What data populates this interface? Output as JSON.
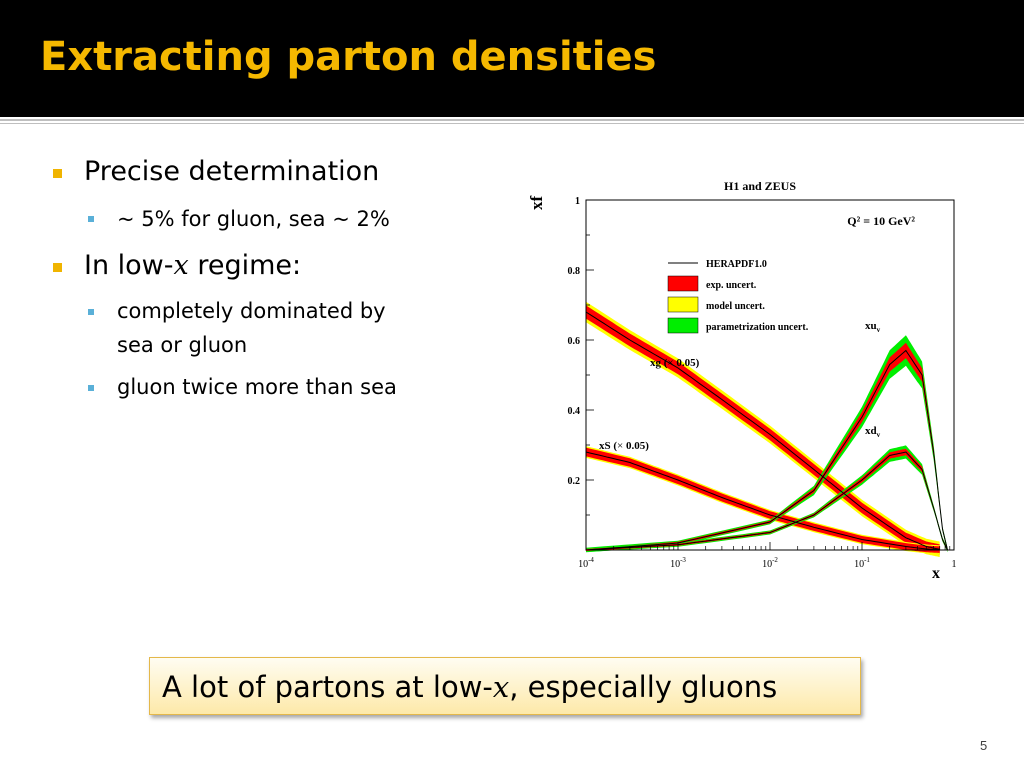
{
  "slide": {
    "title": "Extracting parton densities",
    "bullets": [
      {
        "pre": "Precise determination",
        "var": "",
        "post": ""
      },
      {
        "pre": "~ 5% for gluon, sea ~ 2%",
        "var": "",
        "post": ""
      },
      {
        "pre": "In low-",
        "var": "x",
        "post": " regime:"
      },
      {
        "pre": "completely dominated by",
        "var": "",
        "post": ""
      },
      {
        "pre": "sea or gluon",
        "var": "",
        "post": ""
      },
      {
        "pre": "gluon twice more than sea",
        "var": "",
        "post": ""
      }
    ],
    "callout": {
      "pre": "A lot of partons at low-",
      "var": "x",
      "post": ", especially gluons"
    },
    "page_number": "5"
  },
  "colors": {
    "title": "#f5b800",
    "bullet_l1": "#f0b400",
    "bullet_l2": "#5ab0d8",
    "exp_uncert": "#ff0000",
    "model_uncert": "#ffff00",
    "param_uncert": "#00ee00",
    "central": "#000000"
  },
  "chart_data": {
    "type": "line",
    "title": "H1 and ZEUS",
    "scale_label": "Q² = 10 GeV²",
    "xlabel": "x",
    "ylabel": "xf",
    "x_scale": "log",
    "xlim": [
      0.0001,
      1
    ],
    "ylim": [
      0,
      1
    ],
    "x_ticks": [
      {
        "base": "10",
        "exp": "-4"
      },
      {
        "base": "10",
        "exp": "-3"
      },
      {
        "base": "10",
        "exp": "-2"
      },
      {
        "base": "10",
        "exp": "-1"
      },
      {
        "base": "1",
        "exp": ""
      }
    ],
    "y_ticks": [
      "0.2",
      "0.4",
      "0.6",
      "0.8",
      "1"
    ],
    "legend": {
      "placement": "center-right",
      "entries": [
        "HERAPDF1.0",
        "exp. uncert.",
        "model uncert.",
        "parametrization uncert."
      ]
    },
    "series": [
      {
        "label_main": "xg (",
        "label_sym": "×",
        "label_rest": " 0.05)",
        "x": [
          0.0001,
          0.0003,
          0.001,
          0.003,
          0.01,
          0.03,
          0.1,
          0.3,
          0.5,
          0.7
        ],
        "y": [
          0.68,
          0.6,
          0.52,
          0.43,
          0.33,
          0.23,
          0.12,
          0.035,
          0.01,
          0.002
        ]
      },
      {
        "label_main": "xS (",
        "label_sym": "×",
        "label_rest": " 0.05)",
        "x": [
          0.0001,
          0.0003,
          0.001,
          0.003,
          0.01,
          0.03,
          0.1,
          0.3,
          0.5,
          0.7
        ],
        "y": [
          0.28,
          0.25,
          0.2,
          0.15,
          0.1,
          0.065,
          0.03,
          0.01,
          0.003,
          0.001
        ]
      },
      {
        "label_main": "xu",
        "label_sub": "v",
        "x": [
          0.0001,
          0.001,
          0.01,
          0.03,
          0.1,
          0.2,
          0.3,
          0.45,
          0.6,
          0.75,
          0.85
        ],
        "y": [
          0.0,
          0.02,
          0.08,
          0.17,
          0.38,
          0.53,
          0.57,
          0.5,
          0.28,
          0.06,
          0.0
        ]
      },
      {
        "label_main": "xd",
        "label_sub": "v",
        "x": [
          0.0001,
          0.001,
          0.01,
          0.03,
          0.1,
          0.2,
          0.3,
          0.45,
          0.6,
          0.75,
          0.85
        ],
        "y": [
          0.0,
          0.015,
          0.05,
          0.1,
          0.2,
          0.27,
          0.28,
          0.23,
          0.12,
          0.03,
          0.0
        ]
      }
    ]
  }
}
